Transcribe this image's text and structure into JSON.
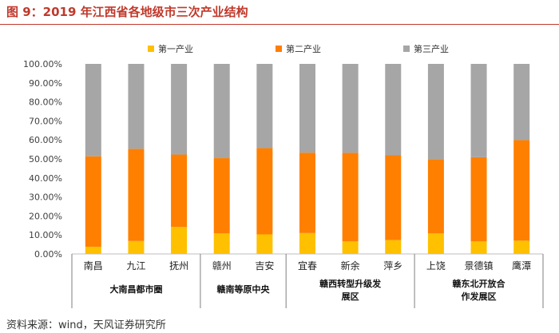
{
  "figure": {
    "title": "图 9：2019 年江西省各地级市三次产业结构",
    "source": "资料来源：wind，天风证券研究所"
  },
  "chart_data": {
    "type": "bar",
    "stacked": true,
    "categories": [
      "南昌",
      "九江",
      "抚州",
      "赣州",
      "吉安",
      "宜春",
      "新余",
      "萍乡",
      "上饶",
      "景德镇",
      "鹰潭"
    ],
    "series": [
      {
        "name": "第一产业",
        "color": "#FFC000",
        "values": [
          3.8,
          6.8,
          14.2,
          10.8,
          10.3,
          11.0,
          6.6,
          7.3,
          10.8,
          6.6,
          7.0
        ]
      },
      {
        "name": "第二产业",
        "color": "#FF7F00",
        "values": [
          47.6,
          48.5,
          38.1,
          39.6,
          45.4,
          42.3,
          46.6,
          44.6,
          39.1,
          44.3,
          52.9
        ]
      },
      {
        "name": "第三产业",
        "color": "#A6A6A6",
        "values": [
          48.6,
          44.7,
          47.7,
          49.6,
          44.3,
          46.7,
          46.8,
          48.1,
          50.1,
          49.1,
          40.1
        ]
      }
    ],
    "yticks": [
      "0.00%",
      "10.00%",
      "20.00%",
      "30.00%",
      "40.00%",
      "50.00%",
      "60.00%",
      "70.00%",
      "80.00%",
      "90.00%",
      "100.00%"
    ],
    "ylim": [
      0,
      100
    ],
    "legend_position": "top",
    "groups": [
      {
        "label_lines": [
          "大南昌都市圈"
        ],
        "start": 0,
        "end": 2
      },
      {
        "label_lines": [
          "赣南等原中央"
        ],
        "start": 3,
        "end": 4
      },
      {
        "label_lines": [
          "赣西转型升级发",
          "展区"
        ],
        "start": 5,
        "end": 7
      },
      {
        "label_lines": [
          "赣东北开放合",
          "作发展区"
        ],
        "start": 8,
        "end": 10
      }
    ]
  }
}
